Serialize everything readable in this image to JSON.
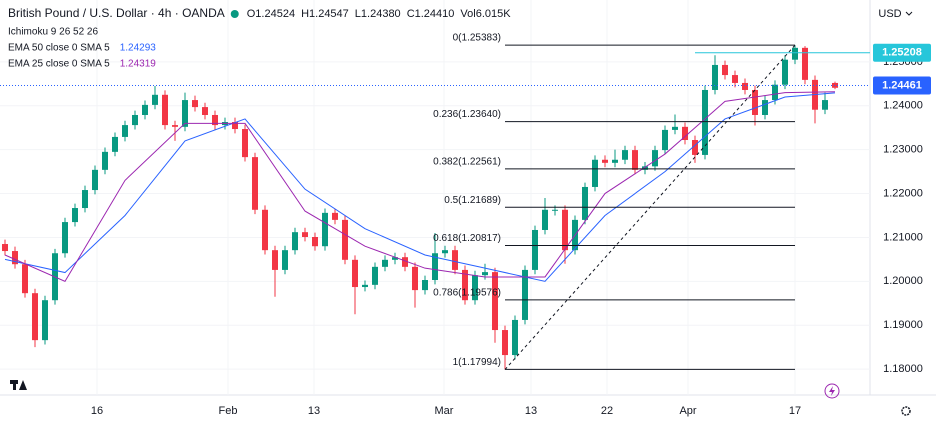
{
  "header": {
    "title": "British Pound / U.S. Dollar · 4h · OANDA",
    "quote": [
      "O1.24524",
      "H1.24547",
      "L1.24380",
      "C1.24410",
      "Vol6.015K"
    ],
    "indicators": [
      {
        "name": "Ichimoku 9 26 52 26"
      },
      {
        "name": "EMA 50 close 0 SMA 5",
        "value": "1.24293",
        "color": "#2962ff"
      },
      {
        "name": "EMA 25 close 0 SMA 5",
        "value": "1.24319",
        "color": "#9c27b0"
      }
    ],
    "currency": "USD"
  },
  "chart_data": {
    "type": "candlestick",
    "up_color": "#089981",
    "down_color": "#f23645",
    "open": [
      1.2085,
      1.2069,
      1.2039,
      1.1973,
      1.1866,
      1.1957,
      1.2064,
      1.2135,
      1.2167,
      1.2208,
      1.2254,
      1.2295,
      1.2329,
      1.2356,
      1.2379,
      1.2402,
      1.2425,
      1.2356,
      1.2352,
      1.2413,
      1.2397,
      1.2379,
      1.2356,
      1.2363,
      1.2347,
      1.2283,
      1.2163,
      1.2071,
      1.2026,
      1.2071,
      1.2112,
      1.2101,
      1.208,
      1.2156,
      1.214,
      1.2049,
      1.1987,
      1.1992,
      1.2033,
      1.2049,
      1.2055,
      1.2033,
      1.198,
      1.2003,
      1.2064,
      1.2071,
      1.2026,
      1.1957,
      1.2014,
      1.2021,
      1.1889,
      1.1832,
      1.1912,
      1.2026,
      1.2117,
      1.2163,
      1.2163,
      1.2071,
      1.214,
      1.2215,
      1.2277,
      1.227,
      1.2277,
      1.2299,
      1.2254,
      1.2262,
      1.2299,
      1.2345,
      1.2352,
      1.2322,
      1.2288,
      1.2436,
      1.2493,
      1.247,
      1.2452,
      1.2436,
      1.2379,
      1.2413,
      1.2448,
      1.2505,
      1.2532,
      1.2459,
      1.2391,
      1.2452
    ],
    "high": [
      1.2095,
      1.2079,
      1.2049,
      1.1983,
      1.1967,
      1.2074,
      1.2145,
      1.2177,
      1.2218,
      1.2264,
      1.2305,
      1.2339,
      1.2366,
      1.2389,
      1.2412,
      1.2445,
      1.2435,
      1.2366,
      1.243,
      1.2423,
      1.2407,
      1.2389,
      1.2373,
      1.2373,
      1.2357,
      1.2293,
      1.2173,
      1.2081,
      1.2081,
      1.2122,
      1.2122,
      1.2111,
      1.2166,
      1.2166,
      1.215,
      1.2059,
      1.2002,
      1.2043,
      1.2059,
      1.2065,
      1.2065,
      1.2043,
      1.2013,
      1.211,
      1.2081,
      1.2081,
      1.2036,
      1.2024,
      1.204,
      1.2031,
      1.1899,
      1.1922,
      1.2036,
      1.2127,
      1.219,
      1.2173,
      1.2173,
      1.215,
      1.2225,
      1.2287,
      1.2287,
      1.23,
      1.2309,
      1.2309,
      1.2272,
      1.2309,
      1.2355,
      1.238,
      1.2362,
      1.2332,
      1.2446,
      1.2515,
      1.2503,
      1.248,
      1.2462,
      1.2446,
      1.2423,
      1.2458,
      1.2515,
      1.2538,
      1.2536,
      1.2469,
      1.243,
      1.2455
    ],
    "low": [
      1.2059,
      1.2029,
      1.1963,
      1.185,
      1.1856,
      1.1947,
      1.2054,
      1.2125,
      1.2157,
      1.2198,
      1.2244,
      1.2285,
      1.2319,
      1.2346,
      1.2369,
      1.2392,
      1.2346,
      1.232,
      1.2342,
      1.2387,
      1.2369,
      1.2346,
      1.2346,
      1.2337,
      1.2273,
      1.2153,
      1.2061,
      1.1965,
      1.2016,
      1.2061,
      1.2091,
      1.207,
      1.207,
      1.213,
      1.2039,
      1.1925,
      1.1977,
      1.1982,
      1.2023,
      1.2039,
      1.2023,
      1.194,
      1.197,
      1.1993,
      1.2054,
      1.2016,
      1.1947,
      1.1947,
      1.2004,
      1.186,
      1.1799,
      1.1822,
      1.1902,
      1.2016,
      1.2107,
      1.215,
      1.204,
      1.2061,
      1.213,
      1.2205,
      1.226,
      1.226,
      1.2267,
      1.2244,
      1.2244,
      1.2252,
      1.2289,
      1.2335,
      1.2312,
      1.227,
      1.2278,
      1.2426,
      1.246,
      1.2442,
      1.2426,
      1.2355,
      1.2369,
      1.2403,
      1.2438,
      1.2495,
      1.2449,
      1.236,
      1.2381,
      1.2438
    ],
    "close": [
      1.2069,
      1.2039,
      1.1973,
      1.1866,
      1.1957,
      1.2064,
      1.2135,
      1.2167,
      1.2208,
      1.2254,
      1.2295,
      1.2329,
      1.2356,
      1.2379,
      1.2402,
      1.2425,
      1.2356,
      1.2352,
      1.2413,
      1.2397,
      1.2379,
      1.2356,
      1.2363,
      1.2347,
      1.2283,
      1.2163,
      1.2071,
      1.2026,
      1.2071,
      1.2112,
      1.2101,
      1.208,
      1.2156,
      1.214,
      1.2049,
      1.1987,
      1.1992,
      1.2033,
      1.2049,
      1.2055,
      1.2033,
      1.198,
      1.2003,
      1.2064,
      1.2071,
      1.2026,
      1.1957,
      1.2014,
      1.2021,
      1.1889,
      1.1832,
      1.1912,
      1.2026,
      1.2117,
      1.2163,
      1.2163,
      1.2071,
      1.214,
      1.2215,
      1.2277,
      1.227,
      1.2277,
      1.2299,
      1.2254,
      1.2262,
      1.2299,
      1.2345,
      1.2352,
      1.2322,
      1.2288,
      1.2436,
      1.2493,
      1.247,
      1.2452,
      1.2436,
      1.2379,
      1.2413,
      1.2448,
      1.2505,
      1.2532,
      1.2459,
      1.2391,
      1.2413,
      1.2441
    ],
    "series": [
      {
        "name": "EMA 50",
        "color": "#2962ff",
        "x": [
          0,
          6,
          12,
          18,
          24,
          30,
          36,
          42,
          48,
          54,
          60,
          66,
          72,
          78,
          83
        ],
        "values": [
          1.205,
          1.202,
          1.215,
          1.232,
          1.237,
          1.221,
          1.212,
          1.206,
          1.203,
          1.2,
          1.215,
          1.225,
          1.237,
          1.242,
          1.24293
        ]
      },
      {
        "name": "EMA 25",
        "color": "#9c27b0",
        "x": [
          0,
          6,
          12,
          18,
          24,
          30,
          36,
          42,
          48,
          54,
          60,
          66,
          72,
          78,
          83
        ],
        "values": [
          1.206,
          1.2,
          1.223,
          1.236,
          1.236,
          1.216,
          1.208,
          1.203,
          1.201,
          1.201,
          1.22,
          1.229,
          1.241,
          1.243,
          1.24319
        ]
      }
    ],
    "fib": {
      "anchors": [
        50,
        79
      ],
      "levels": [
        {
          "value": 1.25383,
          "label": "0(1.25383)"
        },
        {
          "value": 1.2364,
          "label": "0.236(1.23640)"
        },
        {
          "value": 1.22561,
          "label": "0.382(1.22561)"
        },
        {
          "value": 1.21689,
          "label": "0.5(1.21689)"
        },
        {
          "value": 1.20817,
          "label": "0.618(1.20817)"
        },
        {
          "value": 1.19576,
          "label": "0.786(1.19576)"
        },
        {
          "value": 1.17994,
          "label": "1(1.17994)"
        }
      ]
    },
    "price_lines": [
      {
        "value": 1.25208,
        "color": "#26c6da",
        "start": 69
      },
      {
        "value": 1.24461,
        "color": "#2962ff",
        "start": -0.5
      }
    ],
    "xlim": [
      -0.5,
      86.5
    ],
    "ylim": [
      1.1741,
      1.2641
    ],
    "xticks": [
      {
        "value": 9.2,
        "label": "16"
      },
      {
        "value": 22.3,
        "label": "Feb"
      },
      {
        "value": 30.9,
        "label": "13"
      },
      {
        "value": 43.9,
        "label": "Mar"
      },
      {
        "value": 52.6,
        "label": "13"
      },
      {
        "value": 60.2,
        "label": "22"
      },
      {
        "value": 68.3,
        "label": "Apr"
      },
      {
        "value": 79,
        "label": "17"
      }
    ],
    "yticks": [
      {
        "value": 1.25,
        "label": "1.25000"
      },
      {
        "value": 1.24,
        "label": "1.24000"
      },
      {
        "value": 1.23,
        "label": "1.23000"
      },
      {
        "value": 1.22,
        "label": "1.22000"
      },
      {
        "value": 1.21,
        "label": "1.21000"
      },
      {
        "value": 1.2,
        "label": "1.20000"
      },
      {
        "value": 1.19,
        "label": "1.19000"
      },
      {
        "value": 1.18,
        "label": "1.18000"
      }
    ]
  }
}
